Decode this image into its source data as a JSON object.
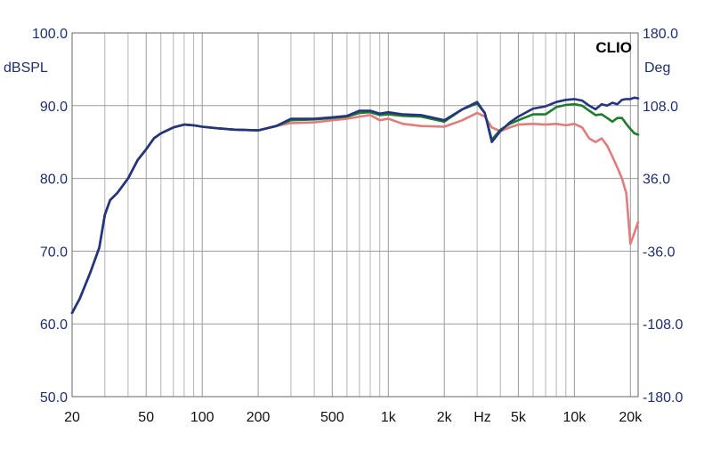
{
  "chart_data": {
    "type": "line",
    "brand_label": "CLIO",
    "ylabel_left": "dBSPL",
    "ylabel_right": "Deg",
    "xlabel": "Hz",
    "x_scale": "log",
    "xlim": [
      20,
      22000
    ],
    "ylim_left": [
      50,
      100
    ],
    "ylim_right": [
      -180,
      180
    ],
    "grid": true,
    "legend": "none",
    "x_tick_labels": [
      {
        "value": 20,
        "label": "20"
      },
      {
        "value": 50,
        "label": "50"
      },
      {
        "value": 100,
        "label": "100"
      },
      {
        "value": 200,
        "label": "200"
      },
      {
        "value": 500,
        "label": "500"
      },
      {
        "value": 1000,
        "label": "1k"
      },
      {
        "value": 2000,
        "label": "2k"
      },
      {
        "value": 5000,
        "label": "5k"
      },
      {
        "value": 10000,
        "label": "10k"
      },
      {
        "value": 20000,
        "label": "20k"
      }
    ],
    "y_left_ticks": [
      {
        "value": 100,
        "label": "100.0"
      },
      {
        "value": 90,
        "label": "90.0"
      },
      {
        "value": 80,
        "label": "80.0"
      },
      {
        "value": 70,
        "label": "70.0"
      },
      {
        "value": 60,
        "label": "60.0"
      },
      {
        "value": 50,
        "label": "50.0"
      }
    ],
    "y_right_ticks": [
      {
        "value": 180,
        "label": "180.0"
      },
      {
        "value": 108,
        "label": "108.0"
      },
      {
        "value": 36,
        "label": "36.0"
      },
      {
        "value": -36,
        "label": "-36.0"
      },
      {
        "value": -108,
        "label": "-108.0"
      },
      {
        "value": -180,
        "label": "-180.0"
      }
    ],
    "series": [
      {
        "color": "#e07c7c",
        "x": [
          20,
          22,
          25,
          28,
          30,
          32,
          35,
          40,
          45,
          50,
          55,
          60,
          70,
          80,
          90,
          100,
          120,
          150,
          200,
          250,
          300,
          400,
          500,
          600,
          700,
          800,
          900,
          1000,
          1200,
          1500,
          2000,
          2500,
          3000,
          3300,
          3600,
          4000,
          4500,
          5000,
          6000,
          7000,
          8000,
          9000,
          10000,
          11000,
          12000,
          13000,
          14000,
          15000,
          16000,
          17000,
          18000,
          19000,
          20000,
          21000,
          22000
        ],
        "values": [
          61.5,
          63.5,
          67.0,
          70.5,
          75.0,
          77.0,
          78.0,
          80.0,
          82.5,
          84.0,
          85.5,
          86.2,
          87.0,
          87.4,
          87.3,
          87.1,
          86.9,
          86.7,
          86.6,
          87.2,
          87.6,
          87.7,
          88.0,
          88.2,
          88.5,
          88.7,
          88.0,
          88.2,
          87.5,
          87.2,
          87.1,
          88.0,
          89.0,
          88.5,
          87.0,
          86.5,
          87.0,
          87.4,
          87.5,
          87.4,
          87.5,
          87.3,
          87.5,
          87.0,
          85.5,
          85.0,
          85.5,
          84.5,
          83.0,
          81.5,
          80.0,
          78.0,
          71.0,
          72.5,
          74.0
        ]
      },
      {
        "color": "#1e7d2c",
        "x": [
          20,
          22,
          25,
          28,
          30,
          32,
          35,
          40,
          45,
          50,
          55,
          60,
          70,
          80,
          90,
          100,
          120,
          150,
          200,
          250,
          300,
          400,
          500,
          600,
          700,
          800,
          900,
          1000,
          1200,
          1500,
          2000,
          2500,
          3000,
          3300,
          3600,
          4000,
          4500,
          5000,
          6000,
          7000,
          8000,
          9000,
          10000,
          11000,
          12000,
          13000,
          14000,
          15000,
          16000,
          17000,
          18000,
          19000,
          20000,
          21000,
          22000
        ],
        "values": [
          61.5,
          63.5,
          67.0,
          70.5,
          75.0,
          77.0,
          78.0,
          80.0,
          82.5,
          84.0,
          85.5,
          86.2,
          87.0,
          87.4,
          87.3,
          87.1,
          86.9,
          86.7,
          86.6,
          87.2,
          88.0,
          88.1,
          88.3,
          88.5,
          89.0,
          89.1,
          88.7,
          88.8,
          88.6,
          88.5,
          87.8,
          89.5,
          90.3,
          89.0,
          85.3,
          86.7,
          87.5,
          88.0,
          88.8,
          88.8,
          89.8,
          90.1,
          90.2,
          90.0,
          89.3,
          88.7,
          88.8,
          88.3,
          87.8,
          88.3,
          88.3,
          87.5,
          86.8,
          86.2,
          86.0
        ]
      },
      {
        "color": "#24347e",
        "x": [
          20,
          22,
          25,
          28,
          30,
          32,
          35,
          40,
          45,
          50,
          55,
          60,
          70,
          80,
          90,
          100,
          120,
          150,
          200,
          250,
          300,
          400,
          500,
          600,
          700,
          800,
          900,
          1000,
          1200,
          1500,
          2000,
          2500,
          3000,
          3300,
          3600,
          4000,
          4500,
          5000,
          6000,
          7000,
          8000,
          9000,
          10000,
          11000,
          12000,
          13000,
          14000,
          15000,
          16000,
          17000,
          18000,
          19000,
          20000,
          21000,
          22000
        ],
        "values": [
          61.5,
          63.5,
          67.0,
          70.5,
          75.0,
          77.0,
          78.0,
          80.0,
          82.5,
          84.0,
          85.5,
          86.2,
          87.0,
          87.4,
          87.3,
          87.1,
          86.9,
          86.7,
          86.6,
          87.2,
          88.2,
          88.2,
          88.4,
          88.6,
          89.3,
          89.3,
          88.9,
          89.1,
          88.8,
          88.7,
          88.0,
          89.5,
          90.5,
          89.0,
          85.0,
          86.5,
          87.7,
          88.5,
          89.6,
          89.9,
          90.5,
          90.8,
          90.9,
          90.7,
          90.0,
          89.5,
          90.2,
          90.0,
          90.4,
          90.2,
          90.8,
          90.9,
          90.9,
          91.1,
          91.0
        ]
      }
    ]
  }
}
